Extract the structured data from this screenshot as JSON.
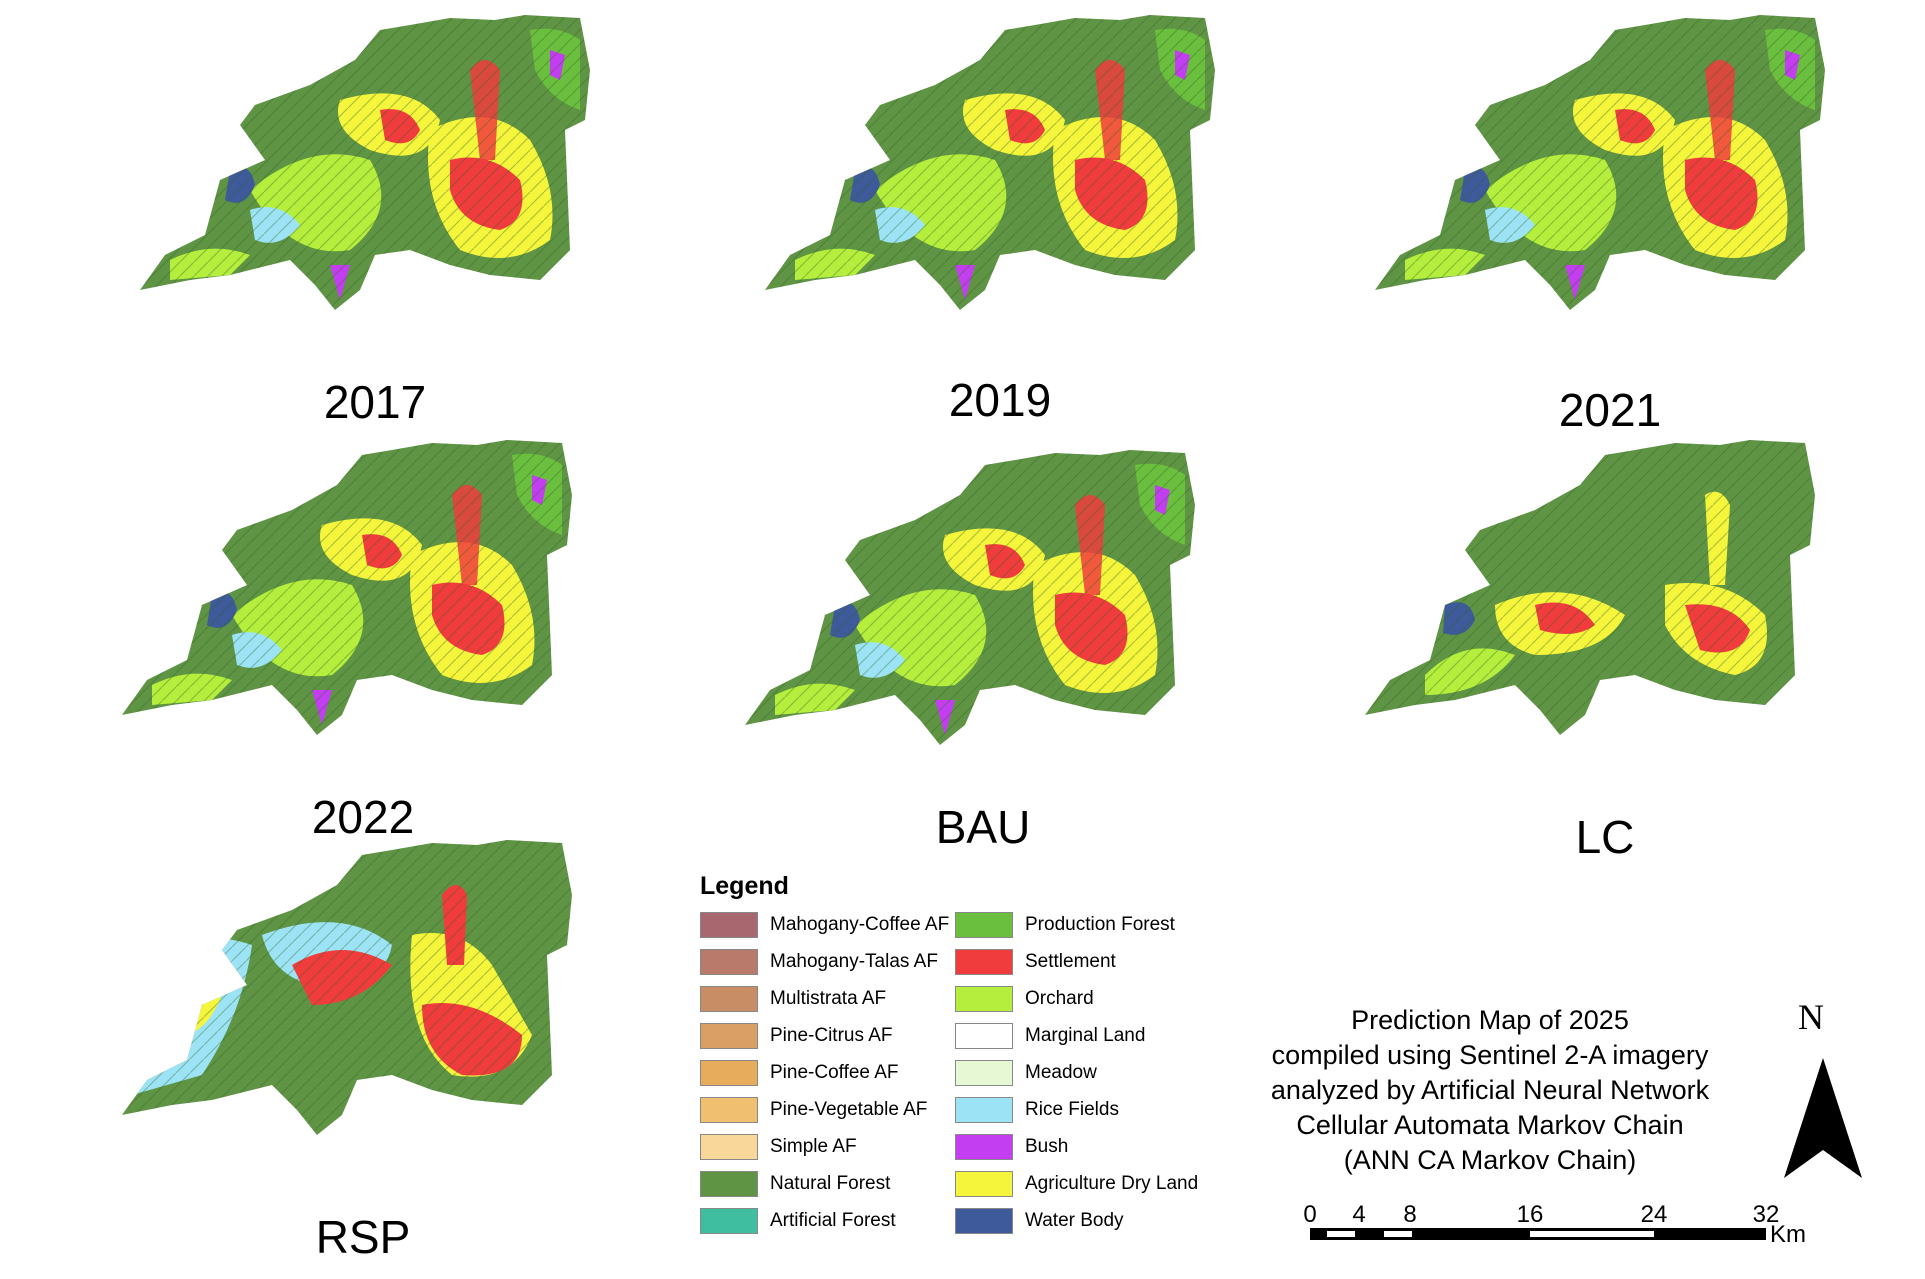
{
  "maps": [
    {
      "id": "2017",
      "label": "2017",
      "variant": "historic"
    },
    {
      "id": "2019",
      "label": "2019",
      "variant": "historic"
    },
    {
      "id": "2021",
      "label": "2021",
      "variant": "historic"
    },
    {
      "id": "2022",
      "label": "2022",
      "variant": "historic"
    },
    {
      "id": "bau",
      "label": "BAU",
      "variant": "historic"
    },
    {
      "id": "lc",
      "label": "LC",
      "variant": "conservation"
    },
    {
      "id": "rsp",
      "label": "RSP",
      "variant": "spatial-plan"
    }
  ],
  "legend": {
    "title": "Legend",
    "items": [
      {
        "label": "Mahogany-Coffee AF",
        "color": "#a8676e"
      },
      {
        "label": "Mahogany-Talas AF",
        "color": "#b97a6c"
      },
      {
        "label": "Multistrata AF",
        "color": "#c98d66"
      },
      {
        "label": "Pine-Citrus AF",
        "color": "#d99f64"
      },
      {
        "label": "Pine-Coffee AF",
        "color": "#e7ad5d"
      },
      {
        "label": "Pine-Vegetable AF",
        "color": "#f0c070"
      },
      {
        "label": "Simple AF",
        "color": "#f9d79a"
      },
      {
        "label": "Natural Forest",
        "color": "#5f9445"
      },
      {
        "label": "Artificial Forest",
        "color": "#3fbf9f"
      },
      {
        "label": "Production Forest",
        "color": "#6bbf3e"
      },
      {
        "label": "Settlement",
        "color": "#f03c3c"
      },
      {
        "label": "Orchard",
        "color": "#b5ee3c"
      },
      {
        "label": "Marginal Land",
        "color": "#ffffff"
      },
      {
        "label": "Meadow",
        "color": "#e7f8d4"
      },
      {
        "label": "Rice Fields",
        "color": "#9ce4f5"
      },
      {
        "label": "Bush",
        "color": "#c23ef0"
      },
      {
        "label": "Agriculture Dry Land",
        "color": "#f5f53c"
      },
      {
        "label": "Water Body",
        "color": "#3e5a9a"
      }
    ]
  },
  "caption": {
    "lines": [
      "Prediction Map of 2025",
      "compiled using Sentinel 2-A imagery",
      "analyzed by Artificial Neural Network",
      "Cellular Automata Markov Chain",
      "(ANN CA Markov Chain)"
    ]
  },
  "north_arrow": {
    "label": "N"
  },
  "scale_bar": {
    "ticks": [
      "0",
      "4",
      "8",
      "16",
      "24",
      "32"
    ],
    "unit": "Km"
  }
}
